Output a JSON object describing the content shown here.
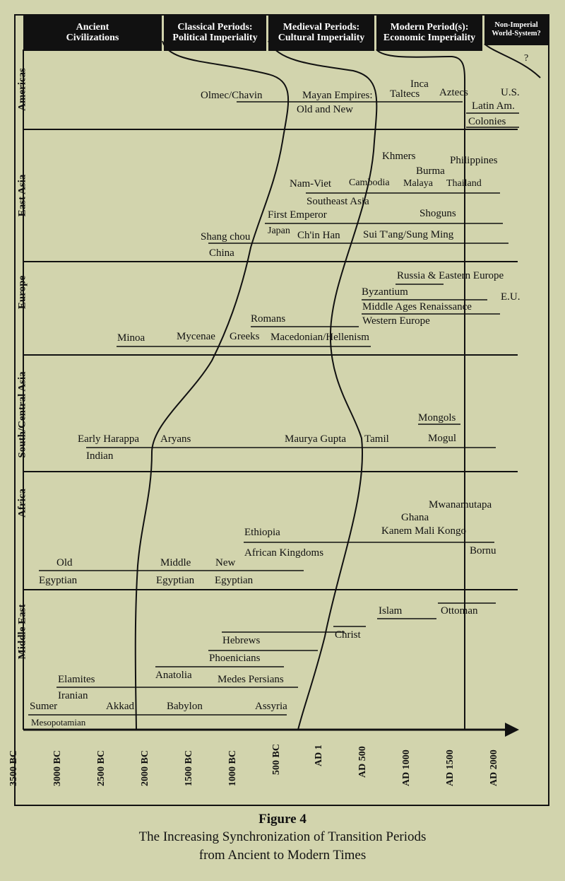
{
  "headers": [
    {
      "line1": "Ancient",
      "line2": "Civilizations"
    },
    {
      "line1": "Classical Periods:",
      "line2": "Political Imperiality"
    },
    {
      "line1": "Medieval Periods:",
      "line2": "Cultural Imperiality"
    },
    {
      "line1": "Modern Period(s):",
      "line2": "Economic Imperiality"
    },
    {
      "line1": "Non-Imperial",
      "line2": "World-System?"
    }
  ],
  "future_mark": "?",
  "regions": [
    "Americas",
    "East Asia",
    "Europe",
    "South/Central Asia",
    "Africa",
    "Middle East"
  ],
  "time_axis": [
    "3500 BC",
    "3000 BC",
    "2500 BC",
    "2000 BC",
    "1500 BC",
    "1000 BC",
    "500 BC",
    "AD 1",
    "AD 500",
    "AD 1000",
    "AD 1500",
    "AD 2000"
  ],
  "labels": {
    "olmec": "Olmec/Chavin",
    "mayan": "Mayan Empires:",
    "old_new": "Old and New",
    "inca": "Inca",
    "taltecs": "Taltecs",
    "aztecs": "Aztecs",
    "us": "U.S.",
    "latin_am": "Latin Am.",
    "colonies": "Colonies",
    "khmers": "Khmers",
    "philippines": "Philippines",
    "burma": "Burma",
    "nam_viet": "Nam-Viet",
    "cambodia": "Cambodia",
    "malaya": "Malaya",
    "thailand": "Thailand",
    "southeast_asia": "Southeast Asia",
    "first_emperor": "First Emperor",
    "shoguns": "Shoguns",
    "shang_chou": "Shang chou",
    "japan": "Japan",
    "chin_han": "Ch'in Han",
    "sui": "Sui T'ang/Sung Ming",
    "china": "China",
    "russia": "Russia & Eastern Europe",
    "byzantium": "Byzantium",
    "eu": "E.U.",
    "middle_ages": "Middle Ages Renaissance",
    "romans": "Romans",
    "western_europe": "Western Europe",
    "minoa": "Minoa",
    "mycenae": "Mycenae",
    "greeks": "Greeks",
    "macedonian": "Macedonian/Hellenism",
    "mongols": "Mongols",
    "early_harappa": "Early Harappa",
    "aryans": "Aryans",
    "maurya": "Maurya Gupta",
    "tamil": "Tamil",
    "mogul": "Mogul",
    "indian": "Indian",
    "mwanamutapa": "Mwanamutapa",
    "ghana": "Ghana",
    "ethiopia": "Ethiopia",
    "kanem": "Kanem Mali Kongo",
    "african_kingdoms": "African Kingdoms",
    "bornu": "Bornu",
    "old": "Old",
    "middle": "Middle",
    "new": "New",
    "egyptian1": "Egyptian",
    "egyptian2": "Egyptian",
    "egyptian3": "Egyptian",
    "islam": "Islam",
    "ottoman": "Ottoman",
    "christ": "Christ",
    "hebrews": "Hebrews",
    "phoenicians": "Phoenicians",
    "elamites": "Elamites",
    "anatolia": "Anatolia",
    "medes": "Medes Persians",
    "iranian": "Iranian",
    "sumer": "Sumer",
    "akkad": "Akkad",
    "babylon": "Babylon",
    "assyria": "Assyria",
    "mesopotamian": "Mesopotamian"
  },
  "caption": {
    "title": "Figure 4",
    "line1": "The Increasing Synchronization of Transition Periods",
    "line2": "from Ancient to Modern Times"
  }
}
